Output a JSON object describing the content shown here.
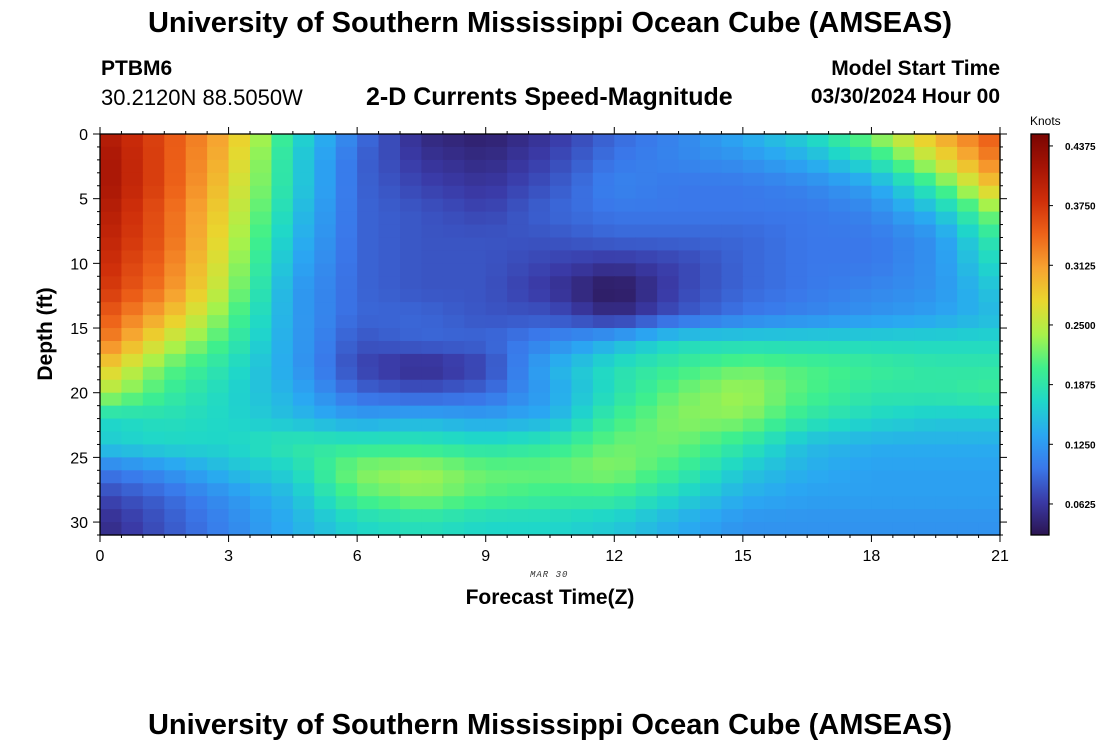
{
  "page": {
    "main_title": "University of Southern Mississippi Ocean Cube (AMSEAS)",
    "bottom_title": "University of Southern Mississippi Ocean Cube (AMSEAS)",
    "station": "PTBM6",
    "coordinates": "30.2120N  88.5050W",
    "chart_title": "2-D Currents Speed-Magnitude",
    "model_start_label": "Model Start Time",
    "model_start_value": "03/30/2024 Hour 00",
    "date_note": "MAR 30"
  },
  "chart_data": {
    "type": "heatmap",
    "title": "2-D Currents Speed-Magnitude",
    "xlabel": "Forecast Time(Z)",
    "ylabel": "Depth (ft)",
    "xlim": [
      0,
      21
    ],
    "ylim": [
      31,
      0
    ],
    "xticks": [
      0,
      3,
      6,
      9,
      12,
      15,
      18,
      21
    ],
    "yticks": [
      0,
      5,
      10,
      15,
      20,
      25,
      30
    ],
    "colorbar": {
      "label": "Knots",
      "range": [
        0.03,
        0.45
      ],
      "ticks": [
        "0.4375",
        "0.3750",
        "0.3125",
        "0.2500",
        "0.1875",
        "0.1250",
        "0.0625"
      ],
      "tick_values": [
        0.4375,
        0.375,
        0.3125,
        0.25,
        0.1875,
        0.125,
        0.0625
      ]
    },
    "z_depth_ft": [
      0,
      2,
      4,
      6,
      8,
      10,
      12,
      14,
      16,
      18,
      20,
      22,
      24,
      26,
      28,
      30
    ],
    "z_time_hours": [
      0,
      1.5,
      3,
      4.5,
      6,
      7.5,
      9,
      10.5,
      12,
      13.5,
      15,
      16.5,
      18,
      19.5,
      21
    ],
    "z_knots": [
      [
        0.41,
        0.36,
        0.3,
        0.18,
        0.1,
        0.05,
        0.04,
        0.06,
        0.09,
        0.11,
        0.14,
        0.17,
        0.23,
        0.3,
        0.36
      ],
      [
        0.42,
        0.36,
        0.29,
        0.17,
        0.09,
        0.06,
        0.05,
        0.07,
        0.1,
        0.11,
        0.12,
        0.14,
        0.18,
        0.26,
        0.34
      ],
      [
        0.42,
        0.36,
        0.28,
        0.17,
        0.09,
        0.07,
        0.06,
        0.08,
        0.11,
        0.1,
        0.1,
        0.11,
        0.13,
        0.2,
        0.3
      ],
      [
        0.41,
        0.35,
        0.27,
        0.16,
        0.09,
        0.08,
        0.07,
        0.09,
        0.1,
        0.1,
        0.1,
        0.1,
        0.11,
        0.15,
        0.24
      ],
      [
        0.4,
        0.35,
        0.26,
        0.15,
        0.09,
        0.08,
        0.08,
        0.08,
        0.09,
        0.09,
        0.09,
        0.1,
        0.1,
        0.12,
        0.2
      ],
      [
        0.39,
        0.34,
        0.25,
        0.14,
        0.09,
        0.08,
        0.08,
        0.07,
        0.06,
        0.07,
        0.09,
        0.1,
        0.1,
        0.12,
        0.18
      ],
      [
        0.38,
        0.33,
        0.24,
        0.13,
        0.09,
        0.08,
        0.08,
        0.06,
        0.03,
        0.07,
        0.09,
        0.1,
        0.11,
        0.12,
        0.16
      ],
      [
        0.36,
        0.3,
        0.22,
        0.13,
        0.09,
        0.09,
        0.08,
        0.08,
        0.05,
        0.08,
        0.1,
        0.11,
        0.12,
        0.13,
        0.15
      ],
      [
        0.34,
        0.26,
        0.2,
        0.13,
        0.08,
        0.09,
        0.09,
        0.11,
        0.14,
        0.17,
        0.17,
        0.17,
        0.17,
        0.17,
        0.17
      ],
      [
        0.29,
        0.22,
        0.18,
        0.13,
        0.07,
        0.05,
        0.07,
        0.14,
        0.18,
        0.2,
        0.22,
        0.21,
        0.2,
        0.19,
        0.19
      ],
      [
        0.25,
        0.2,
        0.17,
        0.14,
        0.09,
        0.08,
        0.09,
        0.13,
        0.18,
        0.22,
        0.24,
        0.21,
        0.19,
        0.19,
        0.2
      ],
      [
        0.17,
        0.18,
        0.17,
        0.15,
        0.13,
        0.14,
        0.13,
        0.14,
        0.2,
        0.23,
        0.23,
        0.19,
        0.17,
        0.16,
        0.16
      ],
      [
        0.16,
        0.17,
        0.17,
        0.19,
        0.19,
        0.19,
        0.18,
        0.19,
        0.22,
        0.22,
        0.19,
        0.15,
        0.14,
        0.14,
        0.14
      ],
      [
        0.1,
        0.12,
        0.15,
        0.17,
        0.23,
        0.24,
        0.22,
        0.22,
        0.23,
        0.2,
        0.16,
        0.14,
        0.13,
        0.13,
        0.13
      ],
      [
        0.07,
        0.09,
        0.12,
        0.15,
        0.21,
        0.23,
        0.21,
        0.2,
        0.2,
        0.17,
        0.14,
        0.13,
        0.13,
        0.13,
        0.13
      ],
      [
        0.05,
        0.08,
        0.11,
        0.14,
        0.17,
        0.18,
        0.17,
        0.17,
        0.16,
        0.14,
        0.12,
        0.12,
        0.12,
        0.12,
        0.12
      ]
    ]
  },
  "colors": {
    "scale": [
      "#2b1450",
      "#3a3aa6",
      "#3a78ea",
      "#2aa7f2",
      "#1fd7c9",
      "#3ff08c",
      "#a8f24a",
      "#e9d72e",
      "#f7a230",
      "#ee6319",
      "#cf2f0a",
      "#a51405",
      "#7a0502"
    ]
  }
}
